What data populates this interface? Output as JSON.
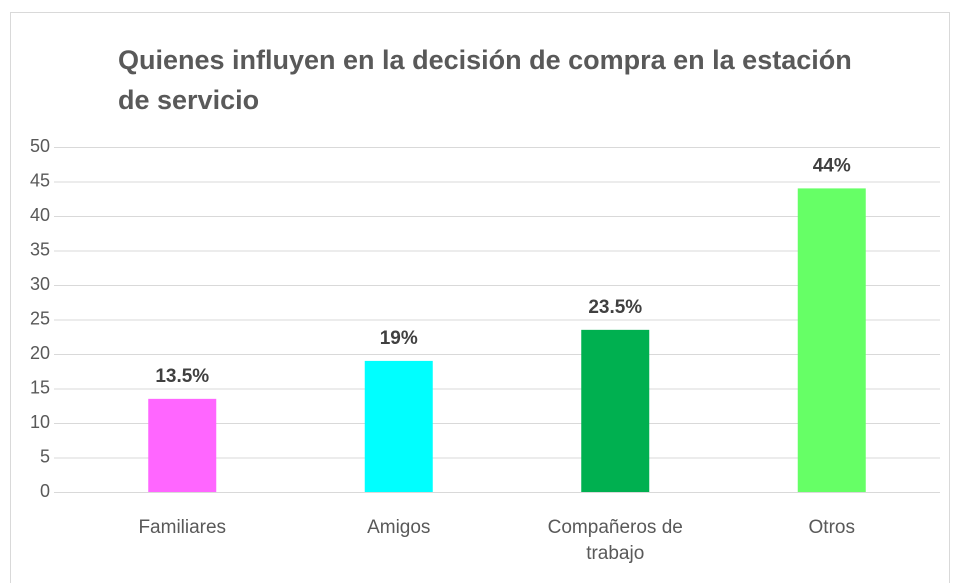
{
  "chart_data": {
    "type": "bar",
    "title": "Quienes influyen en la decisión de compra en la estación de servicio",
    "categories": [
      "Familiares",
      "Amigos",
      "Compañeros de trabajo",
      "Otros"
    ],
    "values": [
      13.5,
      19,
      23.5,
      44
    ],
    "value_labels": [
      "13.5%",
      "19%",
      "23.5%",
      "44%"
    ],
    "colors": [
      "#ff66ff",
      "#00ffff",
      "#00b050",
      "#66ff66"
    ],
    "ylim": [
      0,
      50
    ],
    "yticks": [
      0,
      5,
      10,
      15,
      20,
      25,
      30,
      35,
      40,
      45,
      50
    ],
    "grid": true
  }
}
